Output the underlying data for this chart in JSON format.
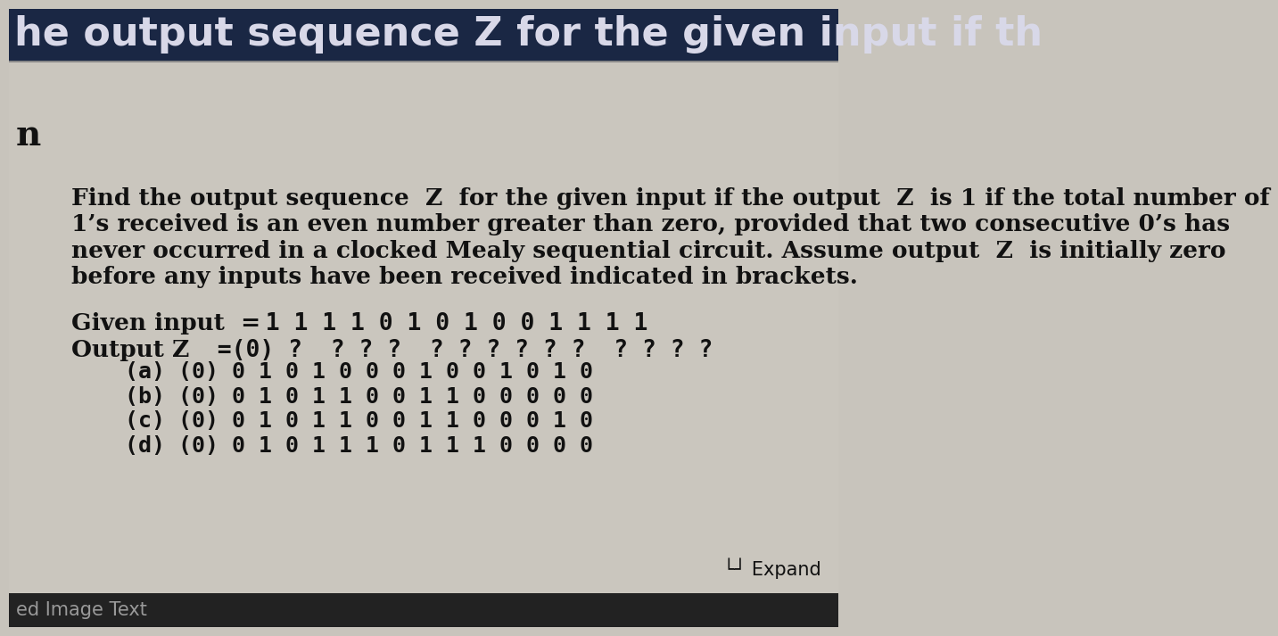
{
  "title_text": "he output sequence Z for the given input if th",
  "title_bg": "#1a2744",
  "title_color": "#d8d8e8",
  "title_fontsize": 32,
  "sidebar_letter": "n",
  "main_bg": "#b8b8b8",
  "content_bg": "#c8c4bc",
  "problem_text_lines": [
    "Find the output sequence  Z  for the given input if the output  Z  is 1 if the total number of",
    "1’s received is an even number greater than zero, provided that two consecutive 0’s has",
    "never occurred in a clocked Mealy sequential circuit. Assume output  Z  is initially zero",
    "before any inputs have been received indicated in brackets."
  ],
  "given_input_label": "Given input  =",
  "given_input_value": "  1 1 1 1 0 1 0 1 0 0 1 1 1 1",
  "output_z_label": "Output Z",
  "output_z_value": "  =(0) ?  ? ? ?  ? ? ? ? ? ?  ? ? ? ?",
  "options": [
    "    (a) (0) 0 1 0 1 0 0 0 1 0 0 1 0 1 0",
    "    (b) (0) 0 1 0 1 1 0 0 1 1 0 0 0 0 0",
    "    (c) (0) 0 1 0 1 1 0 0 1 1 0 0 0 1 0",
    "    (d) (0) 0 1 0 1 1 1 0 1 1 1 0 0 0 0"
  ],
  "expand_text": "└┘ Expand",
  "bottom_text": "ed Image Text",
  "body_fontsize": 19,
  "options_fontsize": 18,
  "title_bar_height": 75,
  "bottom_bar_height": 50
}
